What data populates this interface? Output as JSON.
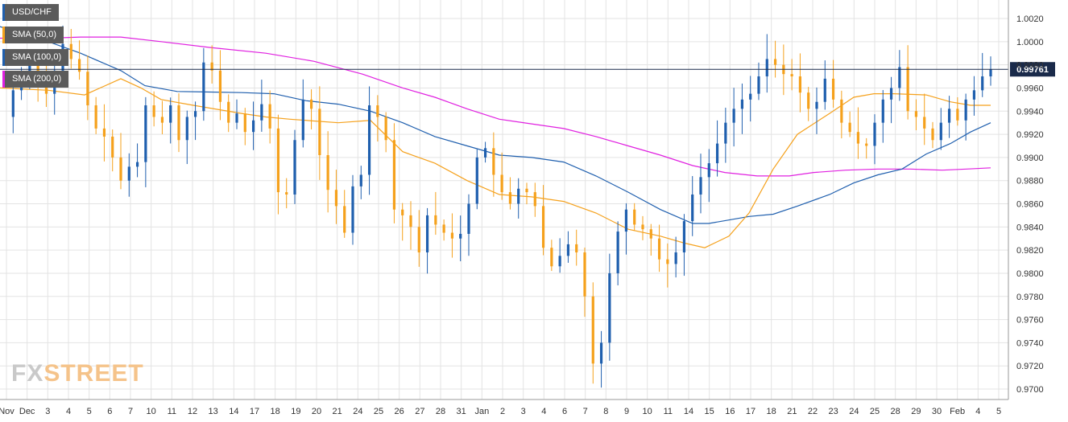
{
  "legend": {
    "symbol": "USD/CHF",
    "sma50": "SMA (50,0)",
    "sma100": "SMA (100,0)",
    "sma200": "SMA (200,0)"
  },
  "watermark": {
    "part1": "FX",
    "part2": "STREET"
  },
  "colors": {
    "up": "#1f5fae",
    "down": "#f5a11c",
    "sma50": "#f5a11c",
    "sma100": "#1f5fae",
    "sma200": "#e020e0",
    "grid": "#e3e3e3",
    "price_line": "#1a2a4a"
  },
  "chart_data": {
    "type": "candlestick",
    "symbol": "USD/CHF",
    "ylim": [
      0.969,
      1.0035
    ],
    "y_ticks": [
      "1.0020",
      "1.0000",
      "0.9980",
      "0.9960",
      "0.9940",
      "0.9920",
      "0.9900",
      "0.9880",
      "0.9860",
      "0.9840",
      "0.9820",
      "0.9800",
      "0.9780",
      "0.9760",
      "0.9740",
      "0.9720",
      "0.9700"
    ],
    "x_ticks": [
      "Nov",
      "Dec",
      "3",
      "4",
      "5",
      "6",
      "7",
      "10",
      "11",
      "12",
      "13",
      "14",
      "17",
      "18",
      "19",
      "20",
      "21",
      "24",
      "25",
      "26",
      "27",
      "28",
      "31",
      "Jan",
      "2",
      "3",
      "4",
      "6",
      "7",
      "8",
      "9",
      "10",
      "11",
      "14",
      "15",
      "16",
      "17",
      "18",
      "21",
      "22",
      "23",
      "24",
      "25",
      "28",
      "29",
      "30",
      "Feb",
      "4",
      "5"
    ],
    "current_price": "0.99761",
    "close_path": [
      0.9935,
      0.9958,
      0.9972,
      0.998,
      0.9968,
      0.9955,
      0.9975,
      0.9998,
      0.9985,
      0.9974,
      0.9945,
      0.9925,
      0.9918,
      0.99,
      0.988,
      0.9892,
      0.9896,
      0.9945,
      0.9935,
      0.993,
      0.9945,
      0.9915,
      0.9935,
      0.994,
      0.9982,
      0.9975,
      0.9948,
      0.993,
      0.9938,
      0.9922,
      0.9932,
      0.9946,
      0.9925,
      0.987,
      0.9868,
      0.9915,
      0.995,
      0.9942,
      0.9902,
      0.9872,
      0.9858,
      0.9835,
      0.9875,
      0.9885,
      0.9945,
      0.9935,
      0.9915,
      0.9855,
      0.985,
      0.984,
      0.9818,
      0.985,
      0.9842,
      0.9835,
      0.983,
      0.9834,
      0.986,
      0.99,
      0.9908,
      0.9885,
      0.987,
      0.986,
      0.9873,
      0.987,
      0.9858,
      0.9822,
      0.9806,
      0.9815,
      0.9825,
      0.9818,
      0.978,
      0.9722,
      0.974,
      0.98,
      0.9836,
      0.9855,
      0.9842,
      0.9838,
      0.983,
      0.9812,
      0.9808,
      0.9818,
      0.9845,
      0.9868,
      0.9883,
      0.9895,
      0.9912,
      0.993,
      0.9942,
      0.995,
      0.9955,
      0.997,
      0.9985,
      0.998,
      0.9972,
      0.997,
      0.9956,
      0.9942,
      0.9948,
      0.9968,
      0.995,
      0.993,
      0.9922,
      0.9912,
      0.991,
      0.993,
      0.995,
      0.996,
      0.9978,
      0.994,
      0.9935,
      0.9925,
      0.9915,
      0.993,
      0.9942,
      0.9932,
      0.995,
      0.9958,
      0.997,
      0.9976
    ],
    "sma50": [
      [
        0,
        0.996
      ],
      [
        60,
        0.9958
      ],
      [
        105,
        0.9954
      ],
      [
        150,
        0.9968
      ],
      [
        175,
        0.996
      ],
      [
        200,
        0.995
      ],
      [
        240,
        0.9945
      ],
      [
        300,
        0.9938
      ],
      [
        330,
        0.9935
      ],
      [
        360,
        0.9933
      ],
      [
        420,
        0.993
      ],
      [
        460,
        0.9932
      ],
      [
        500,
        0.9905
      ],
      [
        540,
        0.9895
      ],
      [
        580,
        0.988
      ],
      [
        620,
        0.9868
      ],
      [
        660,
        0.9866
      ],
      [
        700,
        0.9862
      ],
      [
        740,
        0.9852
      ],
      [
        780,
        0.9838
      ],
      [
        820,
        0.9832
      ],
      [
        850,
        0.9826
      ],
      [
        875,
        0.9822
      ],
      [
        905,
        0.9832
      ],
      [
        930,
        0.9852
      ],
      [
        960,
        0.989
      ],
      [
        990,
        0.992
      ],
      [
        1030,
        0.9938
      ],
      [
        1060,
        0.9952
      ],
      [
        1085,
        0.9955
      ],
      [
        1110,
        0.9955
      ],
      [
        1150,
        0.9954
      ],
      [
        1180,
        0.9948
      ],
      [
        1205,
        0.9945
      ],
      [
        1230,
        0.9945
      ]
    ],
    "sma100": [
      [
        0,
        1.0013
      ],
      [
        60,
        1.0
      ],
      [
        100,
        0.999
      ],
      [
        150,
        0.9975
      ],
      [
        180,
        0.9962
      ],
      [
        220,
        0.9957
      ],
      [
        300,
        0.9956
      ],
      [
        340,
        0.9955
      ],
      [
        380,
        0.9949
      ],
      [
        420,
        0.9946
      ],
      [
        460,
        0.994
      ],
      [
        500,
        0.993
      ],
      [
        540,
        0.9918
      ],
      [
        580,
        0.991
      ],
      [
        620,
        0.9902
      ],
      [
        660,
        0.99
      ],
      [
        700,
        0.9896
      ],
      [
        740,
        0.9884
      ],
      [
        780,
        0.987
      ],
      [
        820,
        0.9855
      ],
      [
        860,
        0.9843
      ],
      [
        880,
        0.9843
      ],
      [
        905,
        0.9846
      ],
      [
        930,
        0.9849
      ],
      [
        960,
        0.9851
      ],
      [
        990,
        0.9858
      ],
      [
        1030,
        0.9868
      ],
      [
        1060,
        0.9878
      ],
      [
        1090,
        0.9885
      ],
      [
        1120,
        0.989
      ],
      [
        1150,
        0.9903
      ],
      [
        1180,
        0.9912
      ],
      [
        1205,
        0.9922
      ],
      [
        1230,
        0.993
      ]
    ],
    "sma200": [
      [
        0,
        1.0003
      ],
      [
        60,
        1.0003
      ],
      [
        100,
        1.0004
      ],
      [
        150,
        1.0004
      ],
      [
        200,
        1.0
      ],
      [
        260,
        0.9995
      ],
      [
        330,
        0.999
      ],
      [
        390,
        0.9983
      ],
      [
        450,
        0.9972
      ],
      [
        500,
        0.996
      ],
      [
        540,
        0.9952
      ],
      [
        580,
        0.9942
      ],
      [
        620,
        0.9933
      ],
      [
        660,
        0.9929
      ],
      [
        700,
        0.9925
      ],
      [
        740,
        0.9918
      ],
      [
        780,
        0.991
      ],
      [
        820,
        0.9902
      ],
      [
        860,
        0.9893
      ],
      [
        900,
        0.9887
      ],
      [
        940,
        0.9884
      ],
      [
        980,
        0.9884
      ],
      [
        1010,
        0.9887
      ],
      [
        1050,
        0.9889
      ],
      [
        1090,
        0.989
      ],
      [
        1130,
        0.989
      ],
      [
        1170,
        0.9889
      ],
      [
        1200,
        0.989
      ],
      [
        1230,
        0.9891
      ]
    ]
  }
}
